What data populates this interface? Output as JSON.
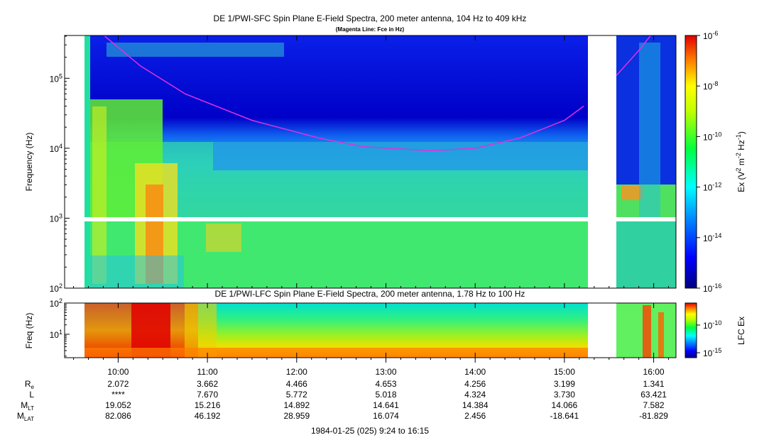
{
  "chart_data": [
    {
      "type": "heatmap",
      "title": "DE 1/PWI-SFC  Spin Plane E-Field Spectra, 200 meter antenna, 104 Hz to 409 kHz",
      "subtitle": "(Magenta Line: Fce in Hz)",
      "ylabel": "Frequency (Hz)",
      "yscale": "log",
      "ylim": [
        100,
        409000
      ],
      "y_ticks": [
        {
          "value": 100,
          "base": "10",
          "exp": "2"
        },
        {
          "value": 1000,
          "base": "10",
          "exp": "3"
        },
        {
          "value": 10000,
          "base": "10",
          "exp": "4"
        },
        {
          "value": 100000,
          "base": "10",
          "exp": "5"
        }
      ],
      "colorbar": {
        "label_parts": [
          "Ex (V",
          "2",
          " m",
          "-2",
          " Hz",
          "-1",
          ")"
        ],
        "scale": "log",
        "range": [
          1e-16,
          1e-06
        ],
        "ticks": [
          {
            "base": "10",
            "exp": "-6"
          },
          {
            "base": "10",
            "exp": "-8"
          },
          {
            "base": "10",
            "exp": "-10"
          },
          {
            "base": "10",
            "exp": "-12"
          },
          {
            "base": "10",
            "exp": "-14"
          },
          {
            "base": "10",
            "exp": "-16"
          }
        ]
      },
      "overlay_line": {
        "name": "Fce",
        "color": "#e030e0",
        "points": [
          {
            "t": "09:51",
            "f": 400000
          },
          {
            "t": "10:15",
            "f": 150000
          },
          {
            "t": "10:45",
            "f": 60000
          },
          {
            "t": "11:30",
            "f": 25000
          },
          {
            "t": "12:15",
            "f": 14000
          },
          {
            "t": "12:45",
            "f": 10500
          },
          {
            "t": "13:30",
            "f": 9200
          },
          {
            "t": "14:00",
            "f": 10000
          },
          {
            "t": "14:30",
            "f": 14000
          },
          {
            "t": "15:00",
            "f": 25000
          },
          {
            "t": "15:13",
            "f": 40000
          }
        ],
        "points_after_gap": [
          {
            "t": "15:35",
            "f": 110000
          },
          {
            "t": "15:50",
            "f": 250000
          },
          {
            "t": "15:58",
            "f": 409000
          }
        ]
      }
    },
    {
      "type": "heatmap",
      "title": "DE 1/PWI-LFC  Spin Plane E-Field Spectra, 200 meter antenna, 1.78 Hz to 100 Hz",
      "ylabel": "Freq (Hz)",
      "yscale": "log",
      "ylim": [
        1.78,
        100
      ],
      "y_ticks": [
        {
          "value": 10,
          "base": "10",
          "exp": "1"
        },
        {
          "value": 100,
          "base": "10",
          "exp": "2"
        }
      ],
      "colorbar": {
        "label": "LFC Ex",
        "scale": "log",
        "ticks": [
          {
            "base": "10",
            "exp": "-10"
          },
          {
            "base": "10",
            "exp": "-15"
          }
        ]
      }
    }
  ],
  "x_axis": {
    "tick_labels": [
      "10:00",
      "11:00",
      "12:00",
      "13:00",
      "14:00",
      "15:00",
      "16:00"
    ],
    "date_label": "1984-01-25 (025) 9:24 to 16:15",
    "data_gaps": [
      [
        "09:24",
        "09:36"
      ],
      [
        "15:13",
        "15:32"
      ]
    ]
  },
  "ephemeris": {
    "rows": [
      {
        "label": "R",
        "sub": "e",
        "values": [
          "2.072",
          "3.662",
          "4.466",
          "4.653",
          "4.256",
          "3.199",
          "1.341"
        ]
      },
      {
        "label": "L",
        "sub": "",
        "values": [
          "****",
          "7.670",
          "5.772",
          "5.018",
          "4.324",
          "3.730",
          "63.421"
        ]
      },
      {
        "label": "M",
        "sub": "LT",
        "values": [
          "19.052",
          "15.216",
          "14.892",
          "14.641",
          "14.384",
          "14.066",
          "7.582"
        ]
      },
      {
        "label": "M",
        "sub": "LAT",
        "values": [
          "82.086",
          "46.192",
          "28.959",
          "16.074",
          "2.456",
          "-18.641",
          "-81.829"
        ]
      }
    ]
  }
}
